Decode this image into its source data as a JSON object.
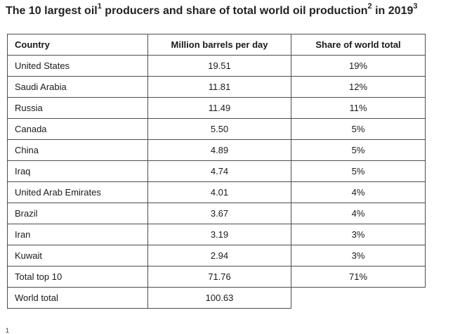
{
  "title": {
    "part1": "The 10 largest oil",
    "sup1": "1",
    "part2": " producers and share of total world oil production",
    "sup2": "2",
    "part3": " in 2019",
    "sup3": "3"
  },
  "table": {
    "headers": [
      "Country",
      "Million barrels per day",
      "Share of world total"
    ],
    "rows": [
      {
        "country": "United States",
        "mbpd": "19.51",
        "share": "19%"
      },
      {
        "country": "Saudi Arabia",
        "mbpd": "11.81",
        "share": "12%"
      },
      {
        "country": "Russia",
        "mbpd": "11.49",
        "share": "11%"
      },
      {
        "country": "Canada",
        "mbpd": "5.50",
        "share": "5%"
      },
      {
        "country": "China",
        "mbpd": "4.89",
        "share": "5%"
      },
      {
        "country": "Iraq",
        "mbpd": "4.74",
        "share": "5%"
      },
      {
        "country": "United Arab Emirates",
        "mbpd": "4.01",
        "share": "4%"
      },
      {
        "country": "Brazil",
        "mbpd": "3.67",
        "share": "4%"
      },
      {
        "country": "Iran",
        "mbpd": "3.19",
        "share": "3%"
      },
      {
        "country": "Kuwait",
        "mbpd": "2.94",
        "share": "3%"
      },
      {
        "country": "Total top 10",
        "mbpd": "71.76",
        "share": "71%"
      }
    ],
    "world_total": {
      "country": "World total",
      "mbpd": "100.63"
    }
  },
  "footnote_marker": "1"
}
